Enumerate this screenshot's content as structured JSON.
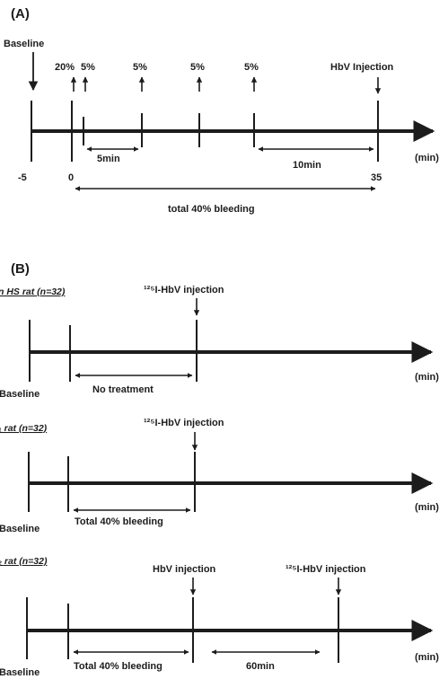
{
  "panel_a": {
    "label": "(A)",
    "baseline": "Baseline",
    "bleeds": [
      "20%",
      "5%",
      "5%",
      "5%",
      "5%"
    ],
    "hbv_injection": "HbV Injection",
    "ticks": [
      "-5",
      "0",
      "35"
    ],
    "unit": "(min)",
    "interval_5": "5min",
    "interval_10": "10min",
    "total": "total 40% bleeding"
  },
  "panel_b": {
    "label": "(B)",
    "unit": "(min)",
    "rows": [
      {
        "group": "n HS rat (n=32)",
        "inj1": "¹²⁵I-HbV injection",
        "baseline": "Baseline",
        "span": "No treatment"
      },
      {
        "group": "₁ rat (n=32)",
        "inj1": "¹²⁵I-HbV injection",
        "baseline": "Baseline",
        "span": "Total 40% bleeding"
      },
      {
        "group": "₂ rat (n=32)",
        "inj1": "HbV injection",
        "inj2": "¹²⁵I-HbV injection",
        "baseline": "Baseline",
        "span": "Total 40% bleeding",
        "span2": "60min"
      }
    ]
  }
}
